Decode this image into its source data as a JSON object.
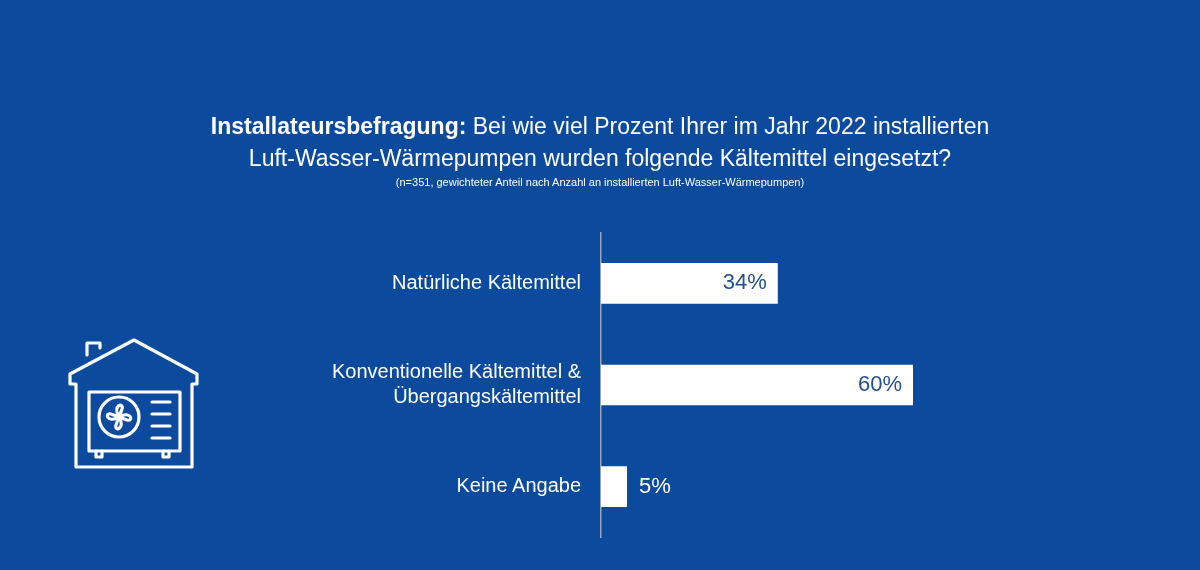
{
  "chart_data": {
    "type": "bar",
    "orientation": "horizontal",
    "title": "Installateursbefragung: Bei wie viel Prozent Ihrer im Jahr 2022 installierten Luft-Wasser-Wärmepumpen wurden folgende Kältemittel eingesetzt?",
    "subtitle": "(n=351, gewichteter Anteil nach Anzahl an installierten Luft-Wasser-Wärmepumpen)",
    "categories": [
      "Natürliche Kältemittel",
      "Konventionelle Kältemittel & Übergangskältemittel",
      "Keine Angabe"
    ],
    "values": [
      34,
      60,
      5
    ],
    "value_labels": [
      "34%",
      "60%",
      "5%"
    ],
    "color": "#ffffff",
    "grid": false,
    "legend": false
  }
}
